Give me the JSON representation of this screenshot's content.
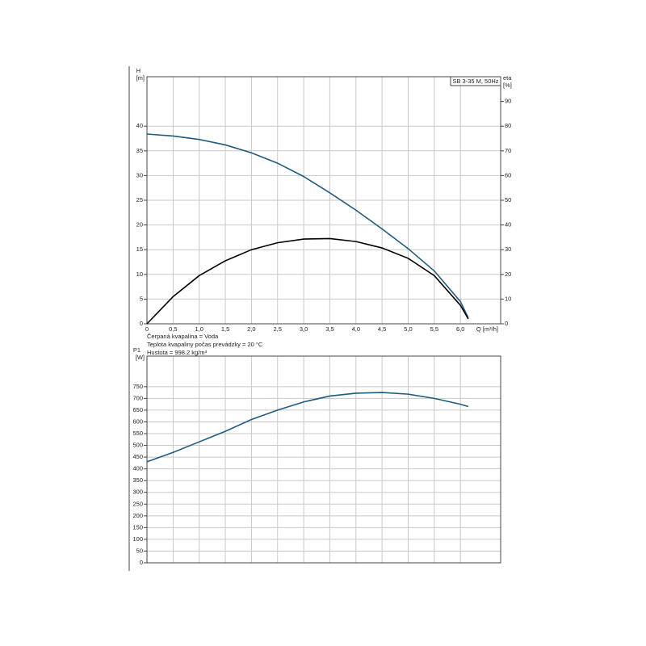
{
  "chart_data": [
    {
      "type": "line",
      "title": "SB 3-35 M, 50Hz",
      "ylabel": "H",
      "yunit": "[m]",
      "y2label": "eta",
      "y2unit": "[%]",
      "xlabel": "Q [m³/h]",
      "notes": [
        "Čerpaná kvapalina = Voda",
        "Teplota kvapaliny počas prevádzky = 20 °C",
        "Hustota = 998.2 kg/m³"
      ],
      "xlim": [
        0,
        6.77
      ],
      "xticks": [
        0,
        {
          "value": 0.5,
          "label": "0,5"
        },
        {
          "value": 1.0,
          "label": "1,0"
        },
        {
          "value": 1.5,
          "label": "1,5"
        },
        {
          "value": 2.0,
          "label": "2,0"
        },
        {
          "value": 2.5,
          "label": "2,5"
        },
        {
          "value": 3.0,
          "label": "3,0"
        },
        {
          "value": 3.5,
          "label": "3,5"
        },
        {
          "value": 4.0,
          "label": "4,0"
        },
        {
          "value": 4.5,
          "label": "4,5"
        },
        {
          "value": 5.0,
          "label": "5,0"
        },
        {
          "value": 5.5,
          "label": "5,5"
        },
        {
          "value": 6.0,
          "label": "6,0"
        }
      ],
      "ylim": [
        0,
        50
      ],
      "yticks": [
        0,
        5,
        10,
        15,
        20,
        25,
        30,
        35,
        40
      ],
      "y2lim": [
        0,
        100
      ],
      "y2ticks": [
        0,
        10,
        20,
        30,
        40,
        50,
        60,
        70,
        80,
        90
      ],
      "x": [
        0,
        0.5,
        1.0,
        1.5,
        2.0,
        2.5,
        3.0,
        3.5,
        4.0,
        4.5,
        5.0,
        5.5,
        6.0,
        6.15
      ],
      "series": [
        {
          "color": "#1f5b80",
          "values": [
            38.4,
            38,
            37.3,
            36.2,
            34.6,
            32.5,
            29.8,
            26.5,
            23,
            19.2,
            15.2,
            10.7,
            4.5,
            1.2
          ]
        },
        {
          "color": "#000000",
          "axis": "y2",
          "values": [
            0,
            11,
            19.5,
            25.5,
            30,
            32.8,
            34.3,
            34.5,
            33.3,
            30.7,
            26.5,
            19.5,
            7.5,
            2
          ]
        }
      ]
    },
    {
      "type": "line",
      "ylabel": "P1",
      "yunit": "[W]",
      "xlim": [
        0,
        6.77
      ],
      "ylim": [
        0,
        880
      ],
      "yticks": [
        0,
        50,
        100,
        150,
        200,
        250,
        300,
        350,
        400,
        450,
        500,
        550,
        600,
        650,
        700,
        750
      ],
      "x": [
        0,
        0.5,
        1.0,
        1.5,
        2.0,
        2.5,
        3.0,
        3.5,
        4.0,
        4.5,
        5.0,
        5.5,
        6.0,
        6.15
      ],
      "series": [
        {
          "color": "#1f5b80",
          "values": [
            430,
            470,
            515,
            560,
            610,
            650,
            685,
            710,
            722,
            725,
            718,
            700,
            675,
            665
          ]
        }
      ]
    }
  ]
}
